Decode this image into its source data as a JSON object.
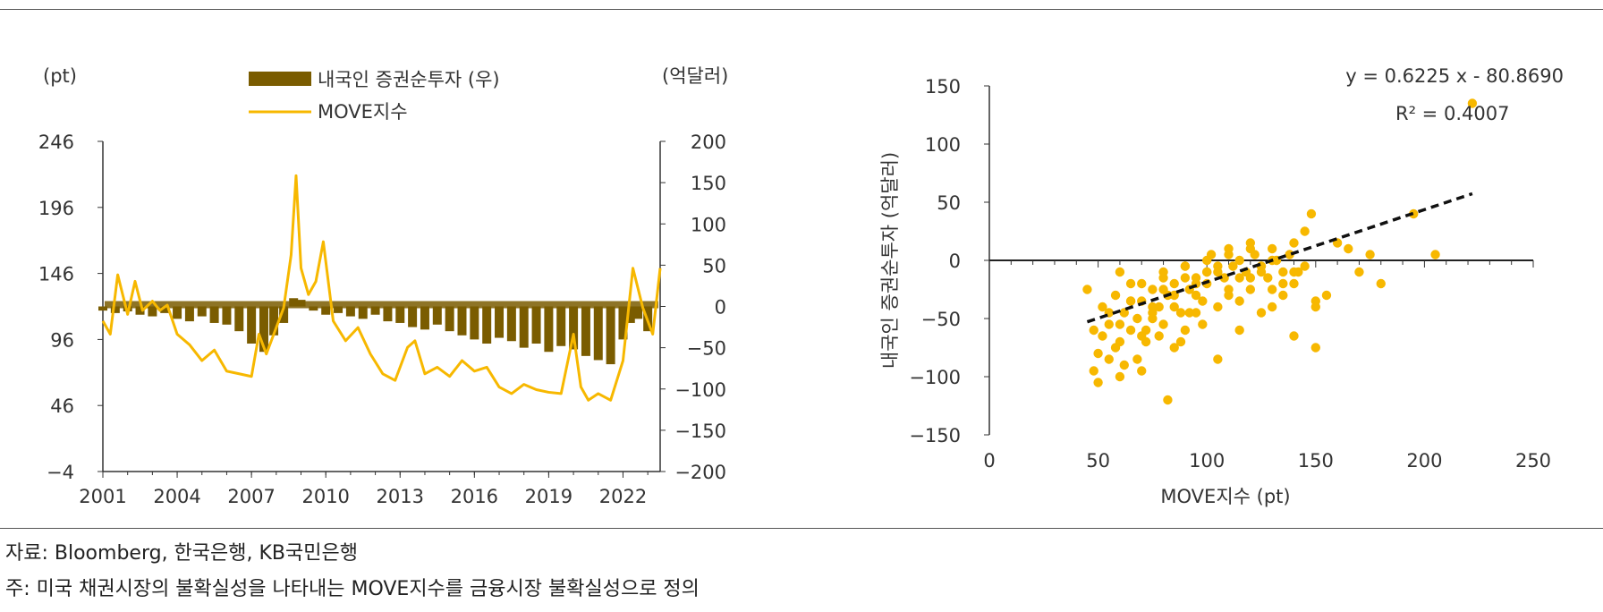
{
  "chart_data": [
    {
      "type": "bar+line",
      "x_ticks": [
        "2001",
        "2004",
        "2007",
        "2010",
        "2013",
        "2016",
        "2019",
        "2022"
      ],
      "x_range": [
        2001,
        2023.5
      ],
      "left_axis": {
        "unit": "(pt)",
        "ticks": [
          246,
          196,
          146,
          96,
          46,
          -4
        ],
        "range": [
          -4,
          246
        ]
      },
      "right_axis": {
        "unit": "(억달러)",
        "ticks": [
          200,
          150,
          100,
          50,
          0,
          -50,
          -100,
          -150,
          -200
        ],
        "range": [
          -200,
          200
        ]
      },
      "series": [
        {
          "name": "내국인 증권순투자 (우)",
          "kind": "bar",
          "axis": "right",
          "color": "#7a5c00",
          "x": [
            2001.0,
            2001.5,
            2002.0,
            2002.5,
            2003.0,
            2003.5,
            2004.0,
            2004.5,
            2005.0,
            2005.5,
            2006.0,
            2006.5,
            2007.0,
            2007.5,
            2007.9,
            2008.3,
            2008.7,
            2009.0,
            2009.5,
            2010.0,
            2010.5,
            2011.0,
            2011.5,
            2012.0,
            2012.5,
            2013.0,
            2013.5,
            2014.0,
            2014.5,
            2015.0,
            2015.5,
            2016.0,
            2016.5,
            2017.0,
            2017.5,
            2018.0,
            2018.5,
            2019.0,
            2019.5,
            2020.0,
            2020.5,
            2021.0,
            2021.5,
            2022.0,
            2022.3,
            2022.6,
            2023.0
          ],
          "values": [
            -5,
            -8,
            -6,
            -10,
            -12,
            -8,
            -15,
            -18,
            -12,
            -20,
            -22,
            -30,
            -45,
            -55,
            -35,
            -20,
            10,
            8,
            -5,
            -10,
            -8,
            -12,
            -15,
            -10,
            -18,
            -20,
            -25,
            -28,
            -22,
            -30,
            -35,
            -40,
            -45,
            -38,
            -42,
            -50,
            -45,
            -55,
            -48,
            -52,
            -60,
            -65,
            -70,
            -40,
            -20,
            -15,
            -30
          ]
        },
        {
          "name": "MOVE지수",
          "kind": "line",
          "axis": "left",
          "color": "#f7b800",
          "x": [
            2001.0,
            2001.3,
            2001.6,
            2002.0,
            2002.3,
            2002.6,
            2003.0,
            2003.3,
            2003.6,
            2004.0,
            2004.5,
            2005.0,
            2005.5,
            2006.0,
            2006.5,
            2007.0,
            2007.3,
            2007.6,
            2008.0,
            2008.3,
            2008.6,
            2008.8,
            2009.0,
            2009.3,
            2009.6,
            2009.9,
            2010.3,
            2010.8,
            2011.3,
            2011.8,
            2012.3,
            2012.8,
            2013.3,
            2013.6,
            2014.0,
            2014.5,
            2015.0,
            2015.5,
            2016.0,
            2016.5,
            2017.0,
            2017.5,
            2018.0,
            2018.5,
            2019.0,
            2019.5,
            2020.0,
            2020.3,
            2020.6,
            2021.0,
            2021.5,
            2022.0,
            2022.4,
            2022.8,
            2023.2,
            2023.5
          ],
          "values": [
            110,
            100,
            145,
            115,
            140,
            118,
            125,
            118,
            122,
            100,
            92,
            80,
            88,
            72,
            70,
            68,
            100,
            85,
            105,
            120,
            160,
            220,
            150,
            130,
            140,
            170,
            110,
            95,
            105,
            85,
            70,
            65,
            90,
            95,
            70,
            75,
            68,
            80,
            72,
            75,
            60,
            55,
            62,
            58,
            56,
            55,
            100,
            60,
            50,
            55,
            50,
            80,
            150,
            120,
            100,
            150
          ]
        }
      ]
    },
    {
      "type": "scatter",
      "xlabel": "MOVE지수 (pt)",
      "ylabel": "내국인 증권순투자 (억달러)",
      "x_ticks": [
        0,
        50,
        100,
        150,
        200,
        250
      ],
      "y_ticks": [
        150,
        100,
        50,
        0,
        -50,
        -100,
        -150
      ],
      "xlim": [
        0,
        250
      ],
      "ylim": [
        -150,
        150
      ],
      "equation": "y = 0.6225  x - 80.8690",
      "r_squared": "R² = 0.4007",
      "trendline": {
        "slope": 0.6225,
        "intercept": -80.869,
        "x_range": [
          45,
          222
        ]
      },
      "point_color": "#f7b800",
      "x": [
        45,
        48,
        50,
        52,
        55,
        58,
        60,
        62,
        65,
        68,
        70,
        72,
        75,
        78,
        80,
        82,
        85,
        88,
        90,
        92,
        95,
        98,
        100,
        102,
        105,
        108,
        110,
        112,
        115,
        118,
        120,
        122,
        125,
        128,
        130,
        132,
        135,
        138,
        140,
        142,
        145,
        148,
        150,
        155,
        160,
        165,
        170,
        175,
        180,
        195,
        205,
        222,
        48,
        52,
        55,
        58,
        60,
        62,
        65,
        68,
        70,
        72,
        75,
        78,
        80,
        82,
        85,
        88,
        90,
        92,
        95,
        98,
        100,
        105,
        110,
        115,
        120,
        125,
        130,
        135,
        140,
        145,
        150,
        50,
        55,
        60,
        65,
        70,
        75,
        80,
        85,
        90,
        95,
        100,
        105,
        110,
        115,
        120,
        125,
        130,
        140,
        150,
        60,
        65,
        70,
        75,
        80,
        85,
        90,
        95,
        100,
        105,
        110,
        115,
        120,
        125,
        130,
        135,
        140
      ],
      "y": [
        -25,
        -60,
        -80,
        -40,
        -55,
        -30,
        -70,
        -45,
        -20,
        -50,
        -35,
        -60,
        -25,
        -40,
        -10,
        -30,
        -20,
        -45,
        -5,
        -25,
        -15,
        -35,
        -10,
        5,
        -5,
        -15,
        10,
        -5,
        0,
        -10,
        15,
        5,
        -5,
        -15,
        10,
        0,
        -20,
        5,
        15,
        -10,
        25,
        40,
        -40,
        -30,
        15,
        10,
        -10,
        5,
        -20,
        40,
        5,
        135,
        -95,
        -65,
        -85,
        -75,
        -100,
        -90,
        -60,
        -85,
        -95,
        -70,
        -50,
        -65,
        -55,
        -120,
        -40,
        -70,
        -60,
        -45,
        -30,
        -55,
        -20,
        -40,
        -25,
        -35,
        -15,
        -45,
        -25,
        -30,
        -10,
        -5,
        -35,
        -105,
        -45,
        -55,
        -35,
        -65,
        -45,
        -25,
        -75,
        -15,
        -45,
        -10,
        -85,
        -30,
        -60,
        -25,
        -10,
        -40,
        -65,
        -75,
        -10,
        -35,
        -20,
        -40,
        -15,
        -30,
        -5,
        -20,
        0,
        -10,
        5,
        -15,
        10,
        -5,
        0,
        -10,
        -20
      ]
    }
  ],
  "footer": {
    "source": "자료: Bloomberg, 한국은행, KB국민은행",
    "note": "주: 미국 채권시장의 불확실성을 나타내는 MOVE지수를 금융시장 불확실성으로 정의"
  }
}
